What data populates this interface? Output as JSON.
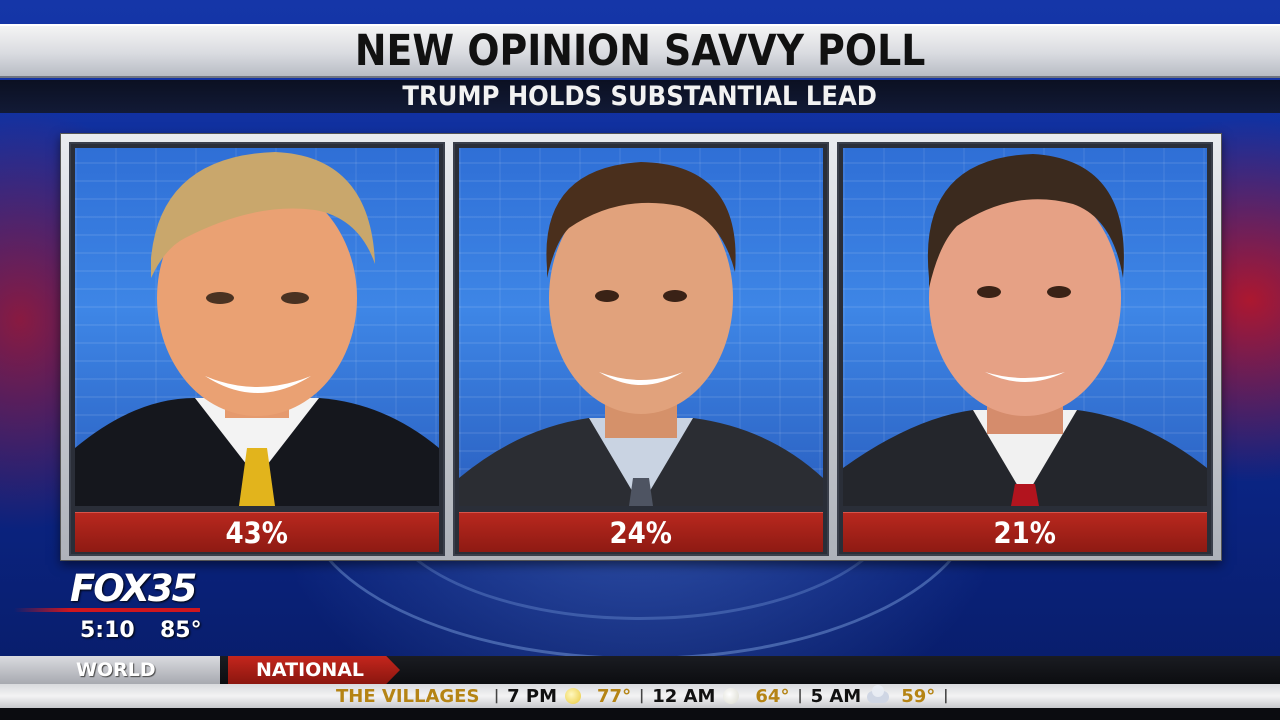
{
  "header": {
    "title": "NEW OPINION SAVVY POLL",
    "subtitle": "TRUMP HOLDS SUBSTANTIAL LEAD"
  },
  "candidates": [
    {
      "percent": "43%",
      "tie_color": "#e2b41c"
    },
    {
      "percent": "24%",
      "tie_color": "#5a6070"
    },
    {
      "percent": "21%",
      "tie_color": "#b2141e"
    }
  ],
  "chart_data": {
    "type": "bar",
    "categories": [
      "",
      "",
      ""
    ],
    "values": [
      43,
      24,
      21
    ],
    "title": "NEW OPINION SAVVY POLL",
    "subtitle": "TRUMP HOLDS SUBSTANTIAL LEAD"
  },
  "station": {
    "logo": "FOX35",
    "time": "5:10",
    "temp": "85°"
  },
  "ticker": {
    "tab_world": "WORLD",
    "tab_national": "NATIONAL",
    "location": "THE VILLAGES",
    "forecast": [
      {
        "time": "7 PM",
        "icon": "sun-icon",
        "temp": "77°"
      },
      {
        "time": "12 AM",
        "icon": "moon-icon",
        "temp": "64°"
      },
      {
        "time": "5 AM",
        "icon": "partly-cloudy-icon",
        "temp": "59°"
      }
    ]
  },
  "colors": {
    "accent_red": "#b8281e",
    "ticker_gold": "#b58414",
    "background_blue": "#0c2a96"
  }
}
